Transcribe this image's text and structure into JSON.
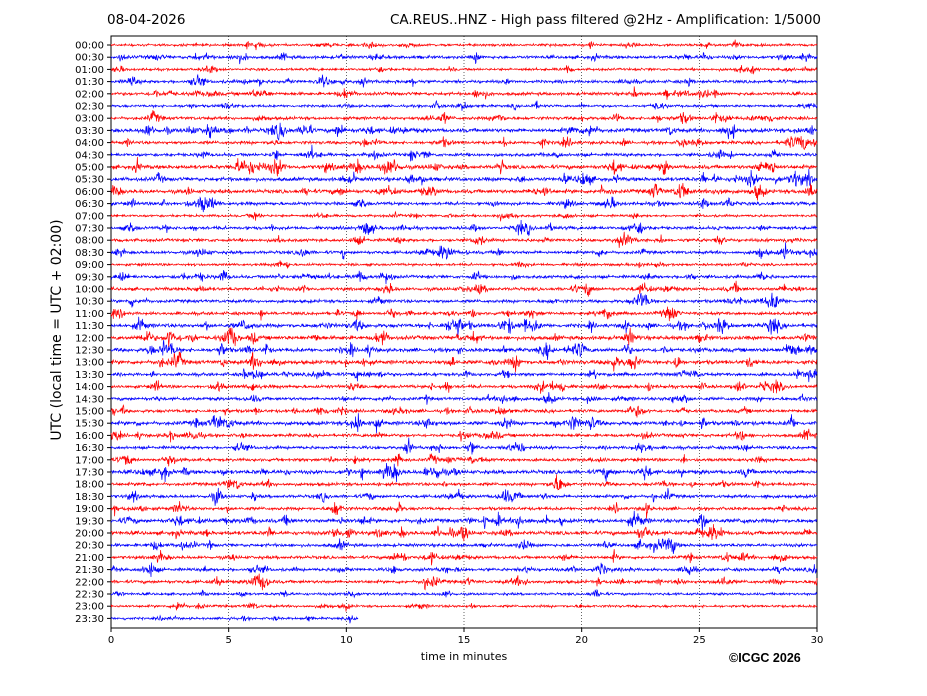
{
  "header": {
    "date": "08-04-2026",
    "title": "CA.REUS..HNZ - High pass filtered @2Hz - Amplification: 1/5000"
  },
  "copyright": "©ICGC 2026",
  "colors": {
    "odd_trace": "#ff0000",
    "even_trace": "#0000ff",
    "grid": "#000000"
  },
  "chart_data": {
    "type": "line",
    "title": "CA.REUS..HNZ - High pass filtered @2Hz - Amplification: 1/5000",
    "xlabel": "time in minutes",
    "ylabel": "UTC (local time = UTC + 02:00)",
    "xlim": [
      0,
      30
    ],
    "x_ticks": [
      "0",
      "5",
      "10",
      "15",
      "20",
      "25",
      "30"
    ],
    "grid": "vertical dotted lines at 5-minute ticks",
    "row_labels": [
      "00:00",
      "00:30",
      "01:00",
      "01:30",
      "02:00",
      "02:30",
      "03:00",
      "03:30",
      "04:00",
      "04:30",
      "05:00",
      "05:30",
      "06:00",
      "06:30",
      "07:00",
      "07:30",
      "08:00",
      "08:30",
      "09:00",
      "09:30",
      "10:00",
      "10:30",
      "11:00",
      "11:30",
      "12:00",
      "12:30",
      "13:00",
      "13:30",
      "14:00",
      "14:30",
      "15:00",
      "15:30",
      "16:00",
      "16:30",
      "17:00",
      "17:30",
      "18:00",
      "18:30",
      "19:00",
      "19:30",
      "20:00",
      "20:30",
      "21:00",
      "21:30",
      "22:00",
      "22:30",
      "23:00",
      "23:30"
    ],
    "row_colors": "alternating red (00:00) and blue (00:30)",
    "series_activity": [
      1,
      2,
      1,
      2,
      2,
      1,
      2,
      3,
      2,
      2,
      3,
      3,
      3,
      2,
      1,
      2,
      2,
      2,
      1,
      2,
      2,
      2,
      2,
      3,
      3,
      3,
      3,
      2,
      2,
      2,
      2,
      3,
      2,
      2,
      2,
      3,
      2,
      2,
      2,
      3,
      3,
      2,
      2,
      2,
      2,
      1,
      1,
      0.6
    ],
    "last_row_end_minute": 10.5
  }
}
